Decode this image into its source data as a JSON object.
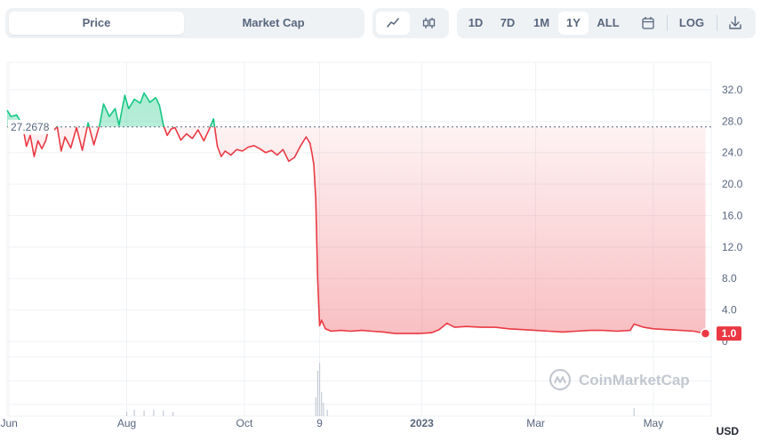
{
  "toolbar": {
    "tabs": [
      {
        "label": "Price",
        "active": true
      },
      {
        "label": "Market Cap",
        "active": false
      }
    ],
    "chart_type_icons": [
      "line-chart-icon",
      "candlestick-icon"
    ],
    "ranges": [
      {
        "label": "1D",
        "active": false
      },
      {
        "label": "7D",
        "active": false
      },
      {
        "label": "1M",
        "active": false
      },
      {
        "label": "1Y",
        "active": true
      },
      {
        "label": "ALL",
        "active": false
      }
    ],
    "calendar_icon": "calendar-icon",
    "log_label": "LOG",
    "download_icon": "download-icon"
  },
  "colors": {
    "up": "#16c784",
    "down": "#ea3943",
    "grid": "#eff2f5",
    "axis_text": "#58667e"
  },
  "watermark": "CoinMarketCap",
  "currency_label": "USD",
  "chart_data": {
    "type": "line",
    "reference_price": 27.2678,
    "reference_label": "27.2678",
    "current_price_label": "1.0",
    "y_ticks": [
      "32.0",
      "28.0",
      "24.0",
      "20.0",
      "16.0",
      "12.0",
      "8.0",
      "4.0",
      "0"
    ],
    "ylim": [
      -9.5,
      35.5
    ],
    "x_ticks": [
      {
        "label": "Jun",
        "bold": false
      },
      {
        "label": "Aug",
        "bold": false
      },
      {
        "label": "Oct",
        "bold": false
      },
      {
        "label": "9",
        "bold": false
      },
      {
        "label": "2023",
        "bold": true
      },
      {
        "label": "Mar",
        "bold": false
      },
      {
        "label": "May",
        "bold": false
      }
    ],
    "x_tick_dates": [
      "2022-06-01",
      "2022-08-01",
      "2022-10-01",
      "2022-11-09",
      "2023-01-01",
      "2023-03-01",
      "2023-05-01"
    ],
    "x_range": [
      "2022-05-31",
      "2023-05-31"
    ],
    "series": [
      {
        "values": [
          [
            "2022-05-31",
            29.4
          ],
          [
            "2022-06-02",
            28.6
          ],
          [
            "2022-06-05",
            28.8
          ],
          [
            "2022-06-08",
            27.5
          ],
          [
            "2022-06-10",
            24.8
          ],
          [
            "2022-06-12",
            26.2
          ],
          [
            "2022-06-14",
            23.5
          ],
          [
            "2022-06-16",
            25.5
          ],
          [
            "2022-06-18",
            24.5
          ],
          [
            "2022-06-20",
            25.5
          ],
          [
            "2022-06-22",
            27.5
          ],
          [
            "2022-06-24",
            26.8
          ],
          [
            "2022-06-26",
            27.3
          ],
          [
            "2022-06-28",
            24.2
          ],
          [
            "2022-06-30",
            26.0
          ],
          [
            "2022-07-03",
            24.6
          ],
          [
            "2022-07-06",
            27.2
          ],
          [
            "2022-07-09",
            24.3
          ],
          [
            "2022-07-12",
            27.8
          ],
          [
            "2022-07-15",
            25.0
          ],
          [
            "2022-07-18",
            27.6
          ],
          [
            "2022-07-20",
            30.2
          ],
          [
            "2022-07-23",
            28.6
          ],
          [
            "2022-07-26",
            29.6
          ],
          [
            "2022-07-28",
            27.5
          ],
          [
            "2022-07-31",
            31.3
          ],
          [
            "2022-08-02",
            29.6
          ],
          [
            "2022-08-05",
            30.8
          ],
          [
            "2022-08-08",
            30.3
          ],
          [
            "2022-08-10",
            31.6
          ],
          [
            "2022-08-13",
            30.4
          ],
          [
            "2022-08-16",
            31.0
          ],
          [
            "2022-08-18",
            30.0
          ],
          [
            "2022-08-20",
            27.5
          ],
          [
            "2022-08-22",
            26.2
          ],
          [
            "2022-08-24",
            27.0
          ],
          [
            "2022-08-26",
            27.2
          ],
          [
            "2022-08-29",
            25.6
          ],
          [
            "2022-09-01",
            26.4
          ],
          [
            "2022-09-04",
            25.8
          ],
          [
            "2022-09-07",
            26.9
          ],
          [
            "2022-09-10",
            25.5
          ],
          [
            "2022-09-13",
            27.1
          ],
          [
            "2022-09-15",
            28.3
          ],
          [
            "2022-09-17",
            24.8
          ],
          [
            "2022-09-19",
            23.5
          ],
          [
            "2022-09-21",
            24.2
          ],
          [
            "2022-09-24",
            23.7
          ],
          [
            "2022-09-27",
            24.4
          ],
          [
            "2022-09-30",
            24.2
          ],
          [
            "2022-10-03",
            24.7
          ],
          [
            "2022-10-06",
            24.9
          ],
          [
            "2022-10-09",
            24.5
          ],
          [
            "2022-10-12",
            24.0
          ],
          [
            "2022-10-15",
            24.3
          ],
          [
            "2022-10-18",
            23.7
          ],
          [
            "2022-10-21",
            24.4
          ],
          [
            "2022-10-24",
            22.9
          ],
          [
            "2022-10-27",
            23.4
          ],
          [
            "2022-10-30",
            24.8
          ],
          [
            "2022-11-02",
            26.0
          ],
          [
            "2022-11-04",
            25.2
          ],
          [
            "2022-11-05",
            24.0
          ],
          [
            "2022-11-06",
            22.5
          ],
          [
            "2022-11-07",
            18.0
          ],
          [
            "2022-11-08",
            8.0
          ],
          [
            "2022-11-09",
            2.0
          ],
          [
            "2022-11-10",
            2.7
          ],
          [
            "2022-11-12",
            1.6
          ],
          [
            "2022-11-15",
            1.3
          ],
          [
            "2022-11-20",
            1.4
          ],
          [
            "2022-11-25",
            1.3
          ],
          [
            "2022-12-01",
            1.4
          ],
          [
            "2022-12-06",
            1.3
          ],
          [
            "2022-12-12",
            1.2
          ],
          [
            "2022-12-18",
            1.0
          ],
          [
            "2022-12-25",
            1.0
          ],
          [
            "2022-12-31",
            1.0
          ],
          [
            "2023-01-06",
            1.1
          ],
          [
            "2023-01-10",
            1.5
          ],
          [
            "2023-01-14",
            2.3
          ],
          [
            "2023-01-18",
            1.8
          ],
          [
            "2023-01-24",
            1.9
          ],
          [
            "2023-02-01",
            1.8
          ],
          [
            "2023-02-08",
            1.8
          ],
          [
            "2023-02-15",
            1.6
          ],
          [
            "2023-02-22",
            1.5
          ],
          [
            "2023-03-01",
            1.4
          ],
          [
            "2023-03-08",
            1.3
          ],
          [
            "2023-03-15",
            1.2
          ],
          [
            "2023-03-22",
            1.3
          ],
          [
            "2023-03-29",
            1.4
          ],
          [
            "2023-04-05",
            1.4
          ],
          [
            "2023-04-12",
            1.3
          ],
          [
            "2023-04-19",
            1.4
          ],
          [
            "2023-04-21",
            2.2
          ],
          [
            "2023-04-26",
            1.8
          ],
          [
            "2023-05-01",
            1.6
          ],
          [
            "2023-05-08",
            1.5
          ],
          [
            "2023-05-15",
            1.4
          ],
          [
            "2023-05-22",
            1.3
          ],
          [
            "2023-05-28",
            1.0
          ]
        ]
      }
    ],
    "volume_spikes": [
      [
        "2022-08-01",
        0.08
      ],
      [
        "2022-08-05",
        0.12
      ],
      [
        "2022-08-10",
        0.1
      ],
      [
        "2022-08-15",
        0.12
      ],
      [
        "2022-08-20",
        0.1
      ],
      [
        "2022-08-25",
        0.08
      ],
      [
        "2022-11-07",
        0.35
      ],
      [
        "2022-11-08",
        0.85
      ],
      [
        "2022-11-09",
        1.0
      ],
      [
        "2022-11-10",
        0.45
      ],
      [
        "2022-11-11",
        0.25
      ],
      [
        "2022-11-13",
        0.12
      ],
      [
        "2023-04-21",
        0.15
      ]
    ]
  }
}
